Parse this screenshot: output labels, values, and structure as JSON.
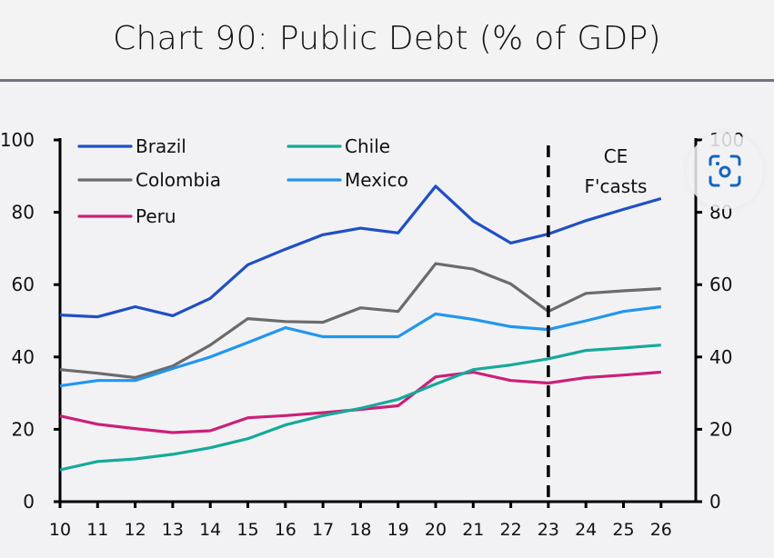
{
  "title": "Chart 90: Public Debt (% of GDP)",
  "lens_button": {
    "icon": "visual-search-icon"
  },
  "chart_data": {
    "type": "line",
    "title": "Chart 90: Public Debt (% of GDP)",
    "xlabel": "",
    "ylabel": "",
    "x": [
      "10",
      "11",
      "12",
      "13",
      "14",
      "15",
      "16",
      "17",
      "18",
      "19",
      "20",
      "21",
      "22",
      "23",
      "24",
      "25",
      "26"
    ],
    "ylim": [
      0,
      100
    ],
    "yticks": [
      0,
      20,
      40,
      60,
      80,
      100
    ],
    "y2ticks": [
      0,
      20,
      40,
      60,
      80,
      100
    ],
    "grid": false,
    "legend_position": "top-left",
    "annotation": {
      "line1": "CE",
      "line2": "F'casts",
      "forecast_start": "23"
    },
    "series": [
      {
        "name": "Brazil",
        "color": "#1f4fc4",
        "values": [
          51.6,
          51.1,
          53.9,
          51.4,
          56.2,
          65.5,
          69.8,
          73.8,
          75.6,
          74.3,
          87.2,
          77.6,
          71.5,
          74.0,
          77.7,
          80.8,
          83.8
        ]
      },
      {
        "name": "Colombia",
        "color": "#6b6b6b",
        "values": [
          36.5,
          35.5,
          34.3,
          37.5,
          43.3,
          50.6,
          49.8,
          49.6,
          53.6,
          52.6,
          65.8,
          64.3,
          60.2,
          52.6,
          57.6,
          58.3,
          58.9
        ]
      },
      {
        "name": "Peru",
        "color": "#cc1f79",
        "values": [
          23.7,
          21.4,
          20.2,
          19.1,
          19.6,
          23.2,
          23.8,
          24.6,
          25.5,
          26.5,
          34.5,
          35.8,
          33.5,
          32.8,
          34.3,
          35.0,
          35.8
        ]
      },
      {
        "name": "Chile",
        "color": "#16a99a",
        "values": [
          8.8,
          11.1,
          11.8,
          13.1,
          14.9,
          17.4,
          21.2,
          23.8,
          25.8,
          28.3,
          32.5,
          36.5,
          37.8,
          39.5,
          41.8,
          42.5,
          43.3
        ]
      },
      {
        "name": "Mexico",
        "color": "#2196f0",
        "values": [
          32.0,
          33.5,
          33.5,
          36.8,
          40.0,
          44.0,
          48.1,
          45.6,
          45.6,
          45.6,
          51.9,
          50.4,
          48.4,
          47.6,
          50.0,
          52.6,
          53.9
        ]
      }
    ]
  }
}
